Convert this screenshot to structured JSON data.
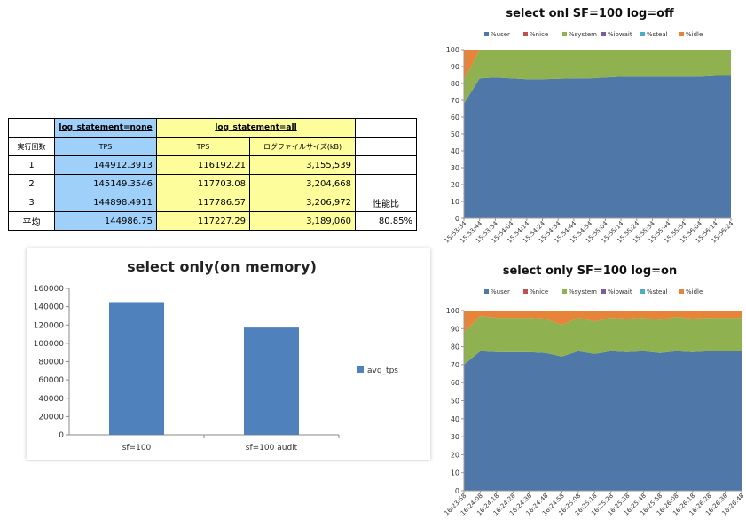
{
  "table": {
    "header_none": "log_statement=none",
    "header_all": "log_statement=all",
    "col_run": "実行回数",
    "col_tps_none": "TPS",
    "col_tps_all": "TPS",
    "col_logsize": "ログファイルサイズ(kB)",
    "rows": [
      {
        "run": "1",
        "tps_none": "144912.3913",
        "tps_all": "116192.21",
        "logsize": "3,155,539",
        "note": ""
      },
      {
        "run": "2",
        "tps_none": "145149.3546",
        "tps_all": "117703.08",
        "logsize": "3,204,668",
        "note": ""
      },
      {
        "run": "3",
        "tps_none": "144898.4911",
        "tps_all": "117786.57",
        "logsize": "3,206,972",
        "note": "性能比"
      },
      {
        "run": "平均",
        "tps_none": "144986.75",
        "tps_all": "117227.29",
        "logsize": "3,189,060",
        "note": "80.85%"
      }
    ]
  },
  "chart_data": [
    {
      "type": "bar",
      "title": "select only(on memory)",
      "categories": [
        "sf=100",
        "sf=100 audit"
      ],
      "series": [
        {
          "name": "avg_tps",
          "values": [
            144987,
            117227
          ]
        }
      ],
      "ylim": [
        0,
        160000
      ],
      "yticks": [
        "0",
        "20000",
        "40000",
        "60000",
        "80000",
        "100000",
        "120000",
        "140000",
        "160000"
      ],
      "colors": {
        "bar": "#4f81bd"
      },
      "legend": "right",
      "grid": false
    },
    {
      "type": "area",
      "stacked": true,
      "title": "select onl SF=100 log=off",
      "legend_labels": [
        "%user",
        "%nice",
        "%system",
        "%iowait",
        "%steal",
        "%idle"
      ],
      "colors": [
        "#4f78a8",
        "#c0504d",
        "#8fb14f",
        "#7a5ca0",
        "#4bacc6",
        "#e8843a"
      ],
      "ylim": [
        0,
        100
      ],
      "yticks": [
        "0",
        "10",
        "20",
        "30",
        "40",
        "50",
        "60",
        "70",
        "80",
        "90",
        "100"
      ],
      "x": [
        "15:53:34",
        "15:53:44",
        "15:53:54",
        "15:54:04",
        "15:54:14",
        "15:54:24",
        "15:54:34",
        "15:54:44",
        "15:54:54",
        "15:55:04",
        "15:55:14",
        "15:55:24",
        "15:55:34",
        "15:55:44",
        "15:55:54",
        "15:56:04",
        "15:56:14",
        "15:56:24"
      ],
      "series": [
        {
          "name": "%user",
          "values": [
            68,
            83,
            83.5,
            83,
            82.5,
            82.5,
            82.8,
            83,
            83,
            83.5,
            84,
            84,
            84,
            84,
            84,
            84,
            84.5,
            84.5
          ]
        },
        {
          "name": "%nice",
          "values": [
            0,
            0,
            0,
            0,
            0,
            0,
            0,
            0,
            0,
            0,
            0,
            0,
            0,
            0,
            0,
            0,
            0,
            0
          ]
        },
        {
          "name": "%system",
          "values": [
            14,
            17,
            16.5,
            17,
            17.5,
            17.5,
            17.2,
            17,
            17,
            16.5,
            16,
            16,
            16,
            16,
            16,
            16,
            15.5,
            15.5
          ]
        },
        {
          "name": "%iowait",
          "values": [
            0,
            0,
            0,
            0,
            0,
            0,
            0,
            0,
            0,
            0,
            0,
            0,
            0,
            0,
            0,
            0,
            0,
            0
          ]
        },
        {
          "name": "%steal",
          "values": [
            0,
            0,
            0,
            0,
            0,
            0,
            0,
            0,
            0,
            0,
            0,
            0,
            0,
            0,
            0,
            0,
            0,
            0
          ]
        },
        {
          "name": "%idle",
          "values": [
            18,
            0,
            0,
            0,
            0,
            0,
            0,
            0,
            0,
            0,
            0,
            0,
            0,
            0,
            0,
            0,
            0,
            0
          ]
        }
      ]
    },
    {
      "type": "area",
      "stacked": true,
      "title": "select only SF=100 log=on",
      "legend_labels": [
        "%user",
        "%nice",
        "%system",
        "%iowait",
        "%steal",
        "%idle"
      ],
      "colors": [
        "#4f78a8",
        "#c0504d",
        "#8fb14f",
        "#7a5ca0",
        "#4bacc6",
        "#e8843a"
      ],
      "ylim": [
        0,
        100
      ],
      "yticks": [
        "0",
        "10",
        "20",
        "30",
        "40",
        "50",
        "60",
        "70",
        "80",
        "90",
        "100"
      ],
      "x": [
        "16:23:58",
        "16:24:08",
        "16:24:18",
        "16:24:28",
        "16:24:38",
        "16:24:48",
        "16:24:58",
        "16:25:08",
        "16:25:18",
        "16:25:28",
        "16:25:38",
        "16:25:48",
        "16:25:58",
        "16:26:08",
        "16:26:18",
        "16:26:28",
        "16:26:38",
        "16:26:48"
      ],
      "series": [
        {
          "name": "%user",
          "values": [
            70,
            77.5,
            77,
            77,
            77,
            76.5,
            74.5,
            77.5,
            76,
            77.5,
            77,
            77.5,
            76.5,
            77.5,
            77,
            77.5,
            77.5,
            77.5
          ]
        },
        {
          "name": "%nice",
          "values": [
            0,
            0,
            0,
            0,
            0,
            0,
            0,
            0,
            0,
            0,
            0,
            0,
            0,
            0,
            0,
            0,
            0,
            0
          ]
        },
        {
          "name": "%system",
          "values": [
            18,
            19.5,
            19,
            19,
            19,
            19,
            17.5,
            18.5,
            18,
            18.5,
            18.5,
            18.5,
            18.5,
            19,
            18.5,
            18.5,
            18.5,
            18.5
          ]
        },
        {
          "name": "%iowait",
          "values": [
            0,
            0,
            0,
            0,
            0,
            0,
            0,
            0,
            0,
            0,
            0,
            0,
            0,
            0,
            0,
            0,
            0,
            0
          ]
        },
        {
          "name": "%steal",
          "values": [
            0,
            0,
            0,
            0,
            0,
            0,
            0,
            0,
            0,
            0,
            0,
            0,
            0,
            0,
            0,
            0,
            0,
            0
          ]
        },
        {
          "name": "%idle",
          "values": [
            12,
            3,
            4,
            4,
            4,
            4.5,
            8,
            4,
            6,
            4,
            4.5,
            4,
            5,
            3.5,
            4.5,
            4,
            4,
            4
          ]
        }
      ]
    }
  ]
}
